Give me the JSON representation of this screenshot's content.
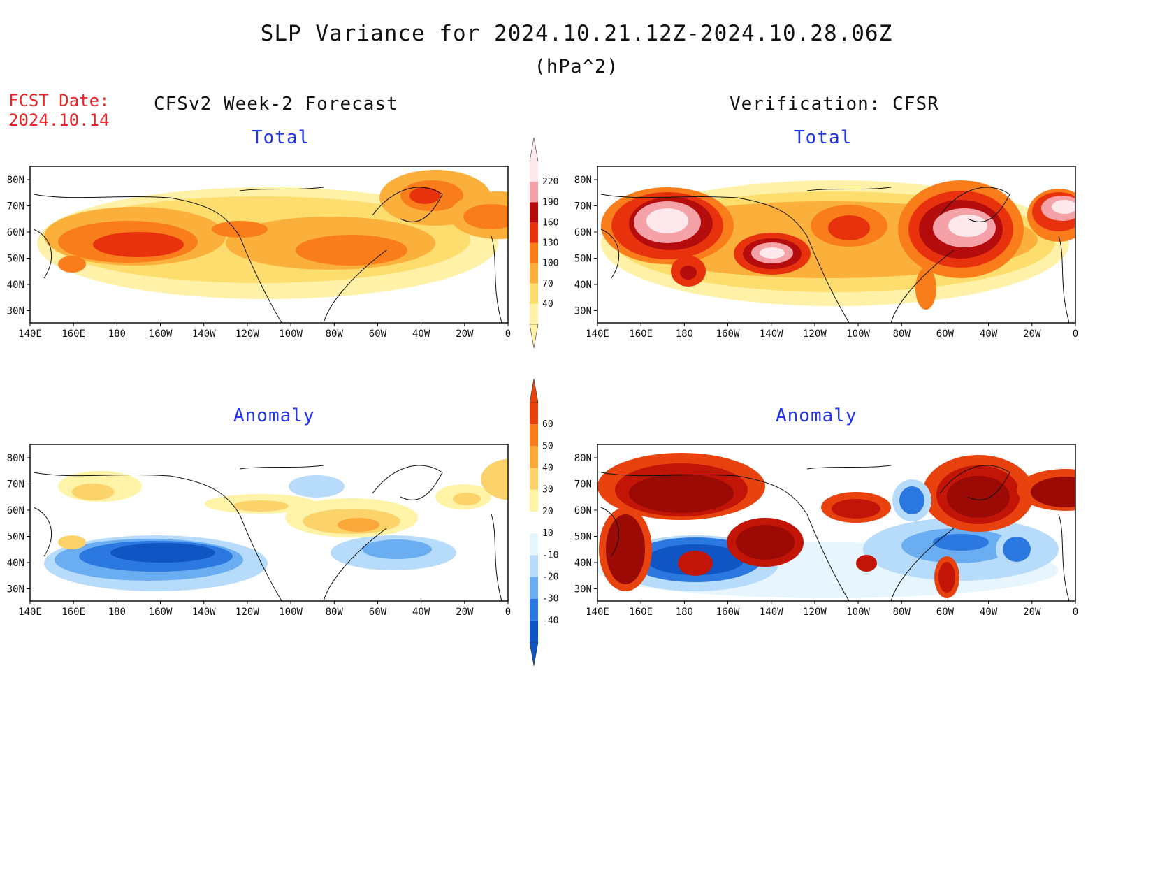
{
  "title": "SLP Variance for 2024.10.21.12Z-2024.10.28.06Z",
  "units": "(hPa^2)",
  "fcst_date_label": "FCST Date:",
  "fcst_date_value": "2024.10.14",
  "columns": {
    "left": "CFSv2 Week-2 Forecast",
    "right": "Verification: CFSR"
  },
  "panels": {
    "top_left": {
      "subtitle": "Total"
    },
    "top_right": {
      "subtitle": "Total"
    },
    "bottom_left": {
      "subtitle": "Anomaly"
    },
    "bottom_right": {
      "subtitle": "Anomaly"
    }
  },
  "x_ticks": [
    "140E",
    "160E",
    "180",
    "160W",
    "140W",
    "120W",
    "100W",
    "80W",
    "60W",
    "40W",
    "20W",
    "0"
  ],
  "y_ticks": [
    "80N",
    "70N",
    "60N",
    "50N",
    "40N",
    "30N"
  ],
  "colorbar_total": {
    "levels": [
      "40",
      "70",
      "100",
      "130",
      "160",
      "190",
      "220"
    ],
    "colors": [
      "#fff2a8",
      "#fddd6e",
      "#fbb03b",
      "#f97e1b",
      "#e8320e",
      "#b50d0d",
      "#f4a2a8",
      "#fde8ec"
    ]
  },
  "colorbar_anomaly": {
    "levels": [
      "-40",
      "-30",
      "-20",
      "-10",
      "10",
      "20",
      "30",
      "40",
      "50",
      "60"
    ],
    "colors": [
      "#1055c4",
      "#2a78e0",
      "#6aadf0",
      "#b7dcfb",
      "#e7f5fe",
      "#ffffff",
      "#fef3a6",
      "#fcd36a",
      "#fba83a",
      "#f87d1c",
      "#e8420f",
      "#c21508",
      "#9b0a04"
    ]
  },
  "colors": {
    "title": "#111111",
    "fcst": "#ee2222",
    "subtitle": "#2233ee"
  }
}
